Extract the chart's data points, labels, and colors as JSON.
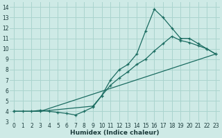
{
  "xlabel": "Humidex (Indice chaleur)",
  "xlim": [
    -0.5,
    23.5
  ],
  "ylim": [
    3,
    14.5
  ],
  "yticks": [
    3,
    4,
    5,
    6,
    7,
    8,
    9,
    10,
    11,
    12,
    13,
    14
  ],
  "xticks": [
    0,
    1,
    2,
    3,
    4,
    5,
    6,
    7,
    8,
    9,
    10,
    11,
    12,
    13,
    14,
    15,
    16,
    17,
    18,
    19,
    20,
    21,
    22,
    23
  ],
  "bg_color": "#ceeae6",
  "grid_color": "#aad4ce",
  "line_color": "#1a6b60",
  "line1_x": [
    0,
    1,
    2,
    3,
    4,
    5,
    6,
    7,
    8,
    9,
    10,
    11,
    12,
    13,
    14,
    15,
    16,
    17,
    18,
    19,
    20,
    21,
    22,
    23
  ],
  "line1_y": [
    4,
    4,
    4,
    4.1,
    4,
    3.9,
    3.8,
    3.65,
    4.0,
    4.4,
    5.5,
    7.0,
    8.0,
    8.5,
    9.5,
    11.7,
    13.8,
    13.0,
    12.0,
    11.0,
    11.0,
    10.5,
    10.0,
    9.5
  ],
  "line2_x": [
    0,
    3,
    9,
    10,
    11,
    12,
    13,
    14,
    15,
    16,
    17,
    18,
    19,
    20,
    21,
    22,
    23
  ],
  "line2_y": [
    4,
    4,
    4.5,
    5.5,
    6.5,
    7.2,
    7.8,
    8.5,
    9.0,
    9.8,
    10.5,
    11.2,
    10.8,
    10.6,
    10.3,
    10.0,
    9.5
  ],
  "line3_x": [
    0,
    3,
    23
  ],
  "line3_y": [
    4,
    4,
    9.5
  ]
}
